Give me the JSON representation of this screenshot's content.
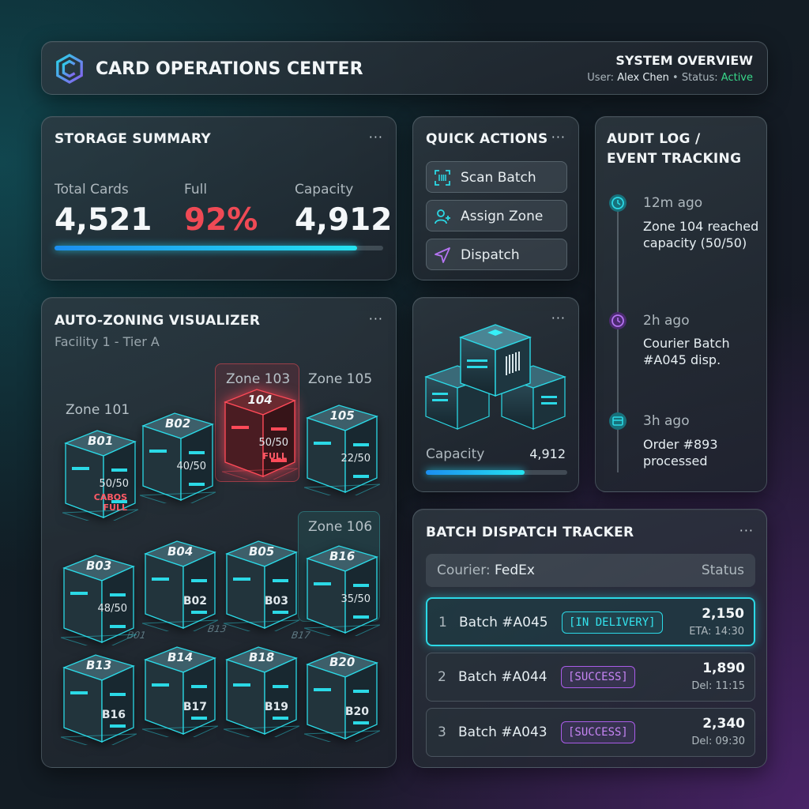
{
  "header": {
    "title": "CARD OPERATIONS CENTER",
    "overview_title": "SYSTEM OVERVIEW",
    "user_label": "User:",
    "user_name": "Alex Chen",
    "separator": "•",
    "status_label": "Status:",
    "status_value": "Active",
    "status_color": "#38d98a"
  },
  "storage": {
    "title": "STORAGE SUMMARY",
    "menu": "···",
    "total_label": "Total Cards",
    "total_value": "4,521",
    "full_label": "Full",
    "full_value": "92%",
    "capacity_label": "Capacity",
    "capacity_value": "4,912",
    "fill_fraction": 0.92
  },
  "quick_actions": {
    "title": "QUICK ACTIONS",
    "menu": "···",
    "items": [
      {
        "label": "Scan Batch",
        "icon": "barcode-scan-icon"
      },
      {
        "label": "Assign Zone",
        "icon": "user-add-icon"
      },
      {
        "label": "Dispatch",
        "icon": "send-icon"
      }
    ]
  },
  "audit": {
    "title_line1": "AUDIT LOG /",
    "title_line2": "EVENT TRACKING",
    "events": [
      {
        "time": "12m ago",
        "text": "Zone 104 reached capacity (50/50)",
        "icon": "clock-icon",
        "color": "#2bd9e6"
      },
      {
        "time": "2h ago",
        "text": "Courier Batch #A045 disp.",
        "icon": "clock-icon",
        "color": "#a95ce8"
      },
      {
        "time": "3h ago",
        "text": "Order #893 processed",
        "icon": "box-icon",
        "color": "#2bd9e6"
      }
    ]
  },
  "visualizer": {
    "title": "AUTO-ZONING VISUALIZER",
    "menu": "···",
    "subtitle": "Facility 1 - Tier A",
    "zones": [
      "Zone 101",
      "Zone 103",
      "Zone 105",
      "Zone 106"
    ],
    "boxes": [
      {
        "code": "B01",
        "fill": "50/50",
        "state": "CABOS",
        "state2": "FULL"
      },
      {
        "code": "B02",
        "fill": "40/50"
      },
      {
        "code": "104",
        "fill": "50/50",
        "state": "FULL"
      },
      {
        "code": "105",
        "fill": "22/50"
      },
      {
        "code": "B03",
        "fill": "48/50"
      },
      {
        "code": "B04",
        "sub": "B02"
      },
      {
        "code": "B05",
        "sub": "B03"
      },
      {
        "code": "B16",
        "fill": "35/50"
      },
      {
        "code": "B13",
        "sub": "B16"
      },
      {
        "code": "B14",
        "sub": "B17"
      },
      {
        "code": "B18",
        "sub": "B19"
      },
      {
        "code": "B20",
        "sub": "B20"
      }
    ],
    "floor_labels": [
      "B01",
      "B13",
      "B17"
    ]
  },
  "cube_card": {
    "menu": "···",
    "capacity_label": "Capacity",
    "capacity_value": "4,912",
    "fill_fraction": 0.7
  },
  "dispatch": {
    "title": "BATCH DISPATCH TRACKER",
    "menu": "···",
    "courier_label": "Courier:",
    "courier_value": "FedEx",
    "status_header": "Status",
    "rows": [
      {
        "index": "1",
        "batch": "Batch #A045",
        "status": "[IN DELIVERY]",
        "count": "2,150",
        "time": "ETA: 14:30"
      },
      {
        "index": "2",
        "batch": "Batch #A044",
        "status": "[SUCCESS]",
        "count": "1,890",
        "time": "Del: 11:15"
      },
      {
        "index": "3",
        "batch": "Batch #A043",
        "status": "[SUCCESS]",
        "count": "2,340",
        "time": "Del: 09:30"
      }
    ]
  },
  "colors": {
    "accent_cyan": "#2bd9e6",
    "accent_purple": "#a95ce8",
    "alert_red": "#ef4a55"
  }
}
